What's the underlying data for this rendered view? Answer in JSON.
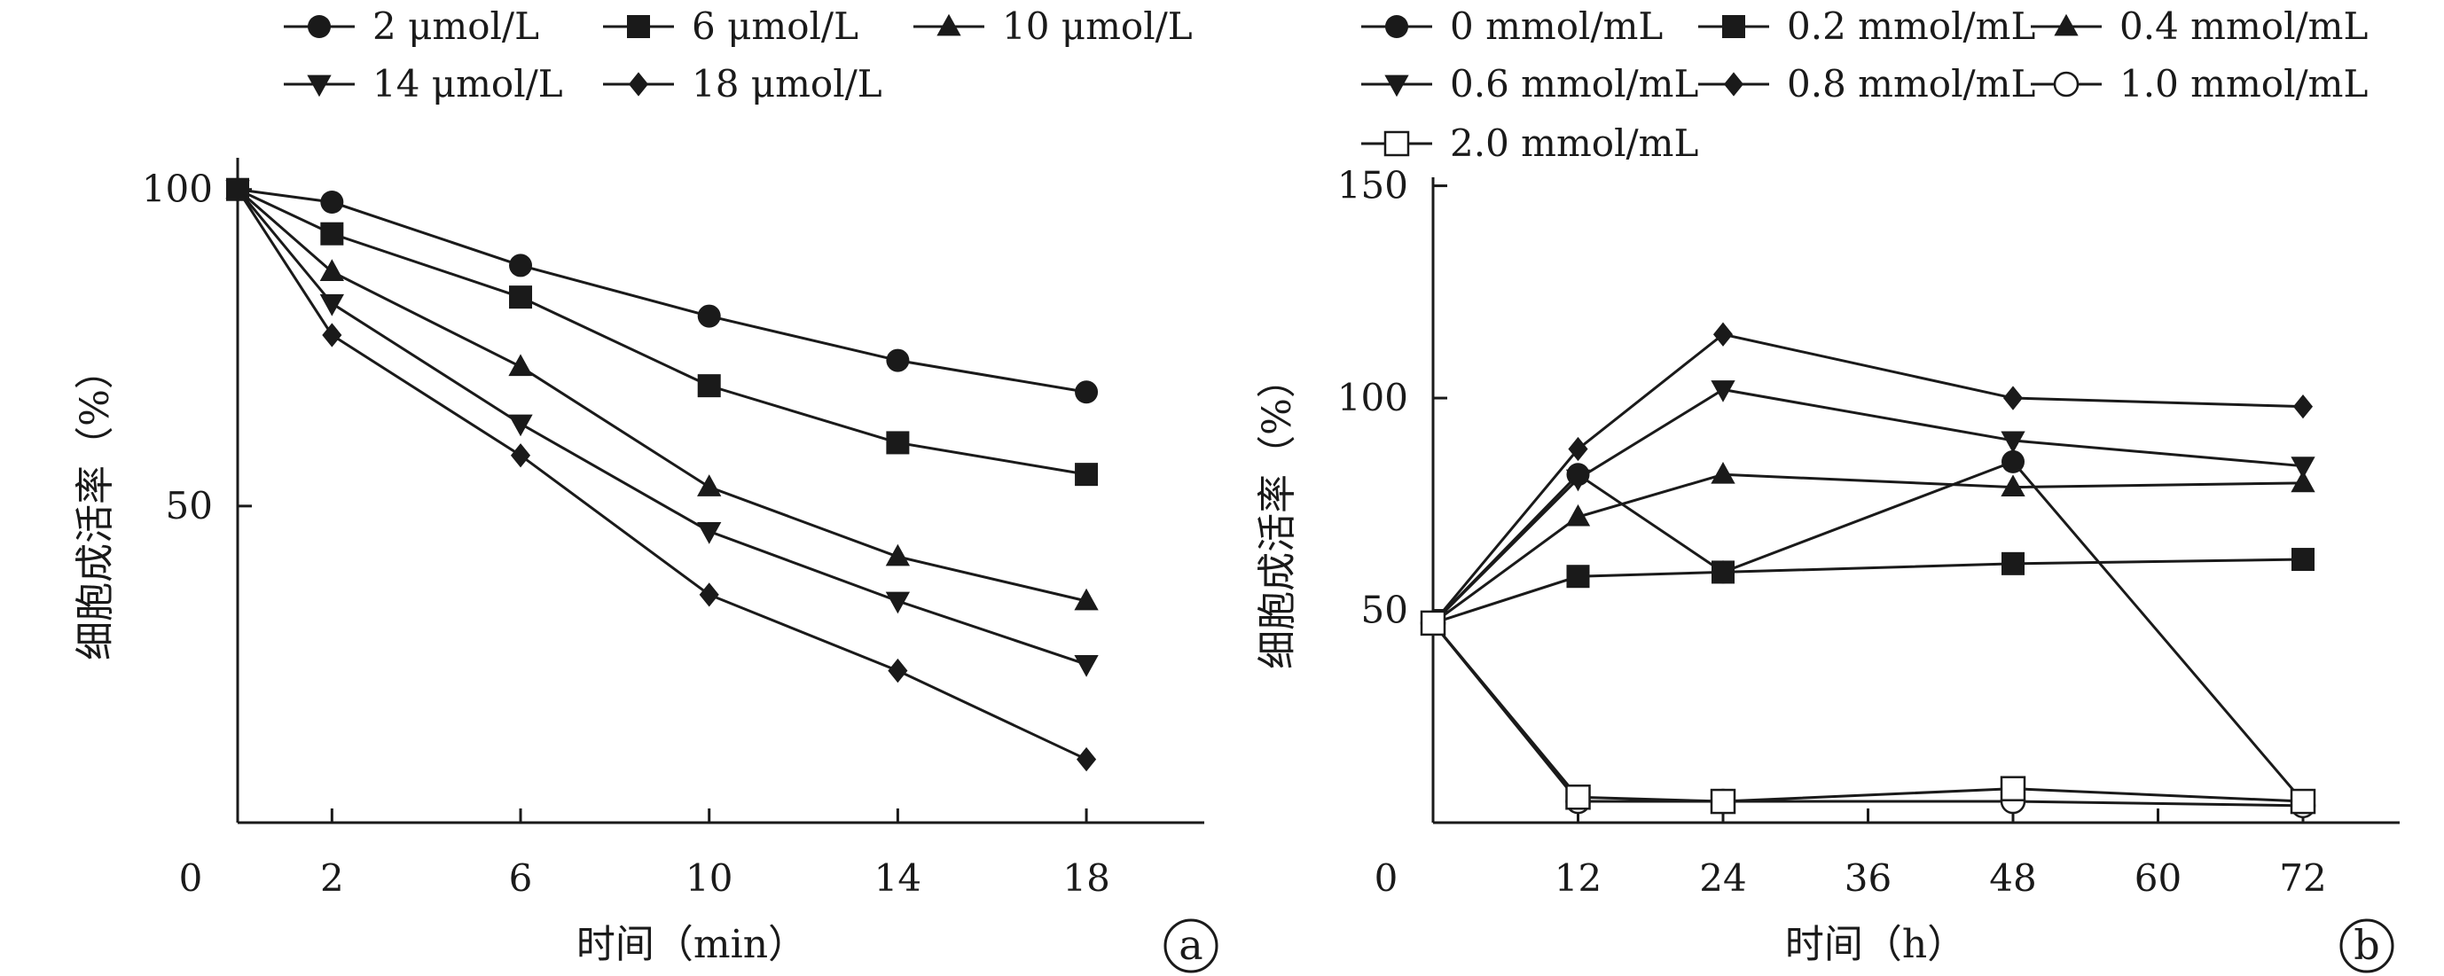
{
  "chart_data": [
    {
      "type": "line",
      "panel_label": "a",
      "xlabel": "时间（min）",
      "ylabel": "细胞成活率（%）",
      "origin_label": "0",
      "xlim": [
        0,
        20.5
      ],
      "ylim": [
        0,
        105
      ],
      "xticks": [
        2,
        6,
        10,
        14,
        18
      ],
      "xtick_labels": [
        "2",
        "6",
        "10",
        "14",
        "18"
      ],
      "yticks": [
        50,
        100
      ],
      "ytick_labels": [
        "50",
        "100"
      ],
      "legend": {
        "position": "top"
      },
      "grid": false,
      "x": [
        0,
        2,
        6,
        10,
        14,
        18
      ],
      "series": [
        {
          "name": "2 μmol/L",
          "marker": "circle",
          "values": [
            100,
            98,
            88,
            80,
            73,
            68
          ]
        },
        {
          "name": "6 μmol/L",
          "marker": "square",
          "values": [
            100,
            93,
            83,
            69,
            60,
            55
          ]
        },
        {
          "name": "10 μmol/L",
          "marker": "triangle-up",
          "values": [
            100,
            87,
            72,
            53,
            42,
            35
          ]
        },
        {
          "name": "14 μmol/L",
          "marker": "triangle-down",
          "values": [
            100,
            82,
            63,
            46,
            35,
            25
          ]
        },
        {
          "name": "18 μmol/L",
          "marker": "diamond",
          "values": [
            100,
            77,
            58,
            36,
            24,
            10
          ]
        }
      ]
    },
    {
      "type": "line",
      "panel_label": "b",
      "xlabel": "时间（h）",
      "ylabel": "细胞成活率（%）",
      "origin_label": "0",
      "xlim": [
        0,
        80
      ],
      "ylim": [
        0,
        152
      ],
      "xticks": [
        12,
        24,
        36,
        48,
        60,
        72
      ],
      "xtick_labels": [
        "12",
        "24",
        "36",
        "48",
        "60",
        "72"
      ],
      "yticks": [
        50,
        100,
        150
      ],
      "ytick_labels": [
        "50",
        "100",
        "150"
      ],
      "legend": {
        "position": "top"
      },
      "grid": false,
      "x": [
        0,
        12,
        24,
        48,
        72
      ],
      "series": [
        {
          "name": "0 mmol/mL",
          "marker": "circle",
          "values": [
            47,
            82,
            59,
            85,
            5
          ]
        },
        {
          "name": "0.2 mmol/mL",
          "marker": "square",
          "values": [
            47,
            58,
            59,
            61,
            62
          ]
        },
        {
          "name": "0.4 mmol/mL",
          "marker": "triangle-up",
          "values": [
            47,
            72,
            82,
            79,
            80
          ]
        },
        {
          "name": "0.6 mmol/mL",
          "marker": "triangle-down",
          "values": [
            47,
            81,
            102,
            90,
            84
          ]
        },
        {
          "name": "0.8 mmol/mL",
          "marker": "diamond",
          "values": [
            47,
            88,
            115,
            100,
            98
          ]
        },
        {
          "name": "1.0 mmol/mL",
          "marker": "circle-open",
          "values": [
            47,
            5,
            5,
            5,
            4
          ]
        },
        {
          "name": "2.0 mmol/mL",
          "marker": "square-open",
          "values": [
            47,
            6,
            5,
            8,
            5
          ]
        }
      ]
    }
  ]
}
